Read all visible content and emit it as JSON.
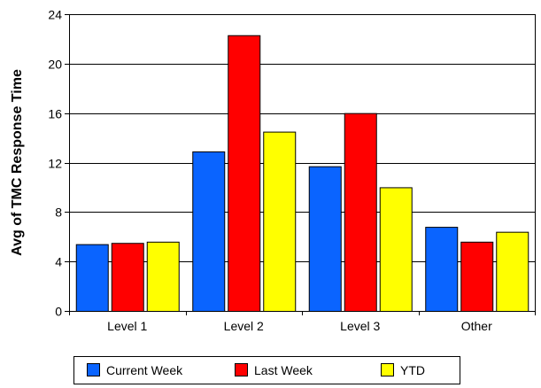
{
  "chart_data": {
    "type": "bar",
    "title": "",
    "xlabel": "",
    "ylabel": "Avg of TMC Response Time",
    "categories": [
      "Level 1",
      "Level 2",
      "Level 3",
      "Other"
    ],
    "ylim": [
      0,
      24
    ],
    "yticks": [
      0,
      4,
      8,
      12,
      16,
      20,
      24
    ],
    "grid": true,
    "legend_position": "bottom",
    "series": [
      {
        "name": "Current Week",
        "color": "#0a64ff",
        "values": [
          5.4,
          12.9,
          11.7,
          6.8
        ]
      },
      {
        "name": "Last Week",
        "color": "#ff0000",
        "values": [
          5.5,
          22.3,
          16.0,
          5.6
        ]
      },
      {
        "name": "YTD",
        "color": "#ffff00",
        "values": [
          5.6,
          14.5,
          10.0,
          6.4
        ]
      }
    ]
  }
}
